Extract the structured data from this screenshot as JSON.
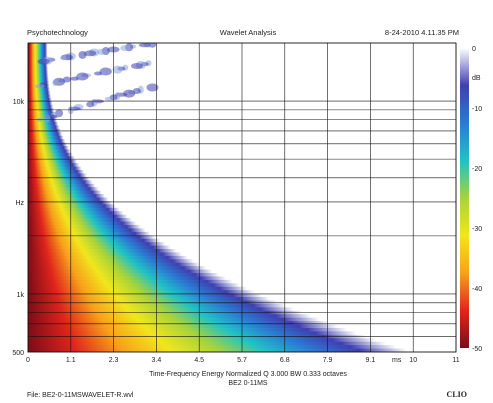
{
  "header": {
    "left": "Psychotechnology",
    "center": "Wavelet Analysis",
    "right": "8-24-2010 4.11.35 PM"
  },
  "footer": {
    "xlabel": "Time-Frequency Energy  Normalized  Q 3.000 BW 0.333 octaves",
    "sublabel": "BE2 0-11MS",
    "file": "File: BE2-0-11MSWAVELET-R.wvl",
    "brand": "CLIO"
  },
  "colors": {
    "background": "#ffffff",
    "gridline": "#111111",
    "colormap": [
      "#7b0d18",
      "#e0241c",
      "#f7a21a",
      "#f1e61c",
      "#a8d33a",
      "#1fc2c6",
      "#2a7bd3",
      "#3f3fb0",
      "#ffffff"
    ]
  },
  "chart_data": {
    "type": "heatmap",
    "title": "Wavelet Analysis",
    "xlabel": "Time-Frequency Energy  Normalized  Q 3.000 BW 0.333 octaves",
    "ylabel": "Hz",
    "x_unit": "ms",
    "xlim": [
      0,
      11
    ],
    "x_ticks": [
      "0",
      "1.1",
      "2.3",
      "3.4",
      "4.5",
      "5.7",
      "6.8",
      "7.9",
      "9.1",
      "10",
      "11"
    ],
    "y_scale": "log",
    "ylim": [
      500,
      20000
    ],
    "y_ticks": [
      "10k",
      "Hz",
      "1k",
      "500"
    ],
    "colorbar": {
      "unit": "dB",
      "range": [
        -50,
        0
      ],
      "ticks": [
        "0",
        "-10",
        "-20",
        "-30",
        "-40",
        "-50"
      ]
    },
    "grid": true,
    "note": "Energy decays from the left edge; decay time grows as frequency decreases."
  }
}
